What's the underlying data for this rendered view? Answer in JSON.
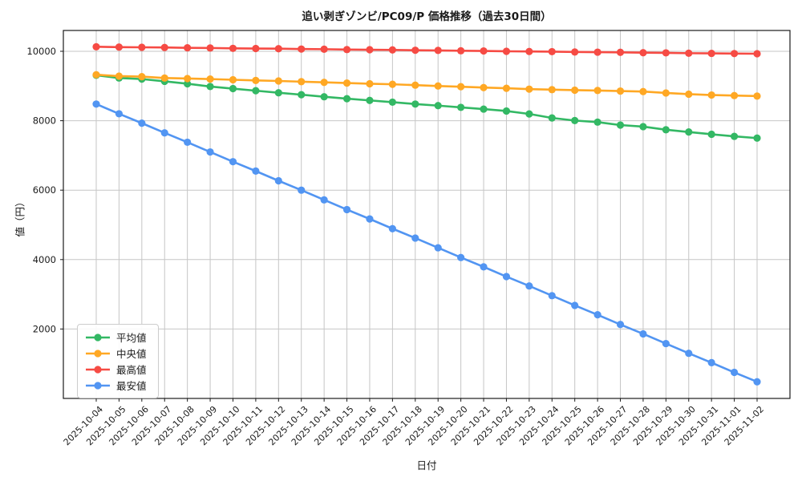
{
  "chart_data": {
    "type": "line",
    "title": "追い剥ぎゾンビ/PC09/P  価格推移（過去30日間）",
    "xlabel": "日付",
    "ylabel": "値（円）",
    "grid": true,
    "legend_position": "lower left",
    "ylim": [
      0,
      10600
    ],
    "yticks": [
      2000,
      4000,
      6000,
      8000,
      10000
    ],
    "x": [
      "2025-10-04",
      "2025-10-05",
      "2025-10-06",
      "2025-10-07",
      "2025-10-08",
      "2025-10-09",
      "2025-10-10",
      "2025-10-11",
      "2025-10-12",
      "2025-10-13",
      "2025-10-14",
      "2025-10-15",
      "2025-10-16",
      "2025-10-17",
      "2025-10-18",
      "2025-10-19",
      "2025-10-20",
      "2025-10-21",
      "2025-10-22",
      "2025-10-23",
      "2025-10-24",
      "2025-10-25",
      "2025-10-26",
      "2025-10-27",
      "2025-10-28",
      "2025-10-29",
      "2025-10-30",
      "2025-10-31",
      "2025-11-01",
      "2025-11-02"
    ],
    "series": [
      {
        "key": "average",
        "name": "平均値",
        "color": "#33b864",
        "values": [
          9310,
          9230,
          9200,
          9135,
          9065,
          8985,
          8925,
          8865,
          8805,
          8750,
          8690,
          8635,
          8585,
          8535,
          8480,
          8435,
          8385,
          8335,
          8280,
          8195,
          8080,
          8005,
          7960,
          7875,
          7830,
          7740,
          7675,
          7610,
          7550,
          7500
        ]
      },
      {
        "key": "median",
        "name": "中央値",
        "color": "#ffa824",
        "values": [
          9325,
          9285,
          9270,
          9230,
          9215,
          9200,
          9180,
          9160,
          9145,
          9125,
          9105,
          9085,
          9065,
          9050,
          9025,
          9000,
          8980,
          8955,
          8935,
          8910,
          8895,
          8880,
          8870,
          8855,
          8840,
          8800,
          8765,
          8740,
          8725,
          8710
        ]
      },
      {
        "key": "max",
        "name": "最高値",
        "color": "#f64b44",
        "values": [
          10130,
          10120,
          10115,
          10110,
          10100,
          10095,
          10085,
          10080,
          10075,
          10065,
          10060,
          10050,
          10045,
          10040,
          10030,
          10025,
          10015,
          10010,
          10000,
          9995,
          9990,
          9980,
          9975,
          9970,
          9960,
          9955,
          9945,
          9940,
          9935,
          9930
        ]
      },
      {
        "key": "min",
        "name": "最安値",
        "color": "#5295f2",
        "values": [
          8480,
          8200,
          7930,
          7650,
          7380,
          7100,
          6820,
          6550,
          6270,
          6000,
          5720,
          5440,
          5170,
          4890,
          4620,
          4340,
          4060,
          3790,
          3510,
          3240,
          2960,
          2680,
          2410,
          2130,
          1860,
          1580,
          1300,
          1030,
          750,
          480
        ]
      }
    ]
  }
}
